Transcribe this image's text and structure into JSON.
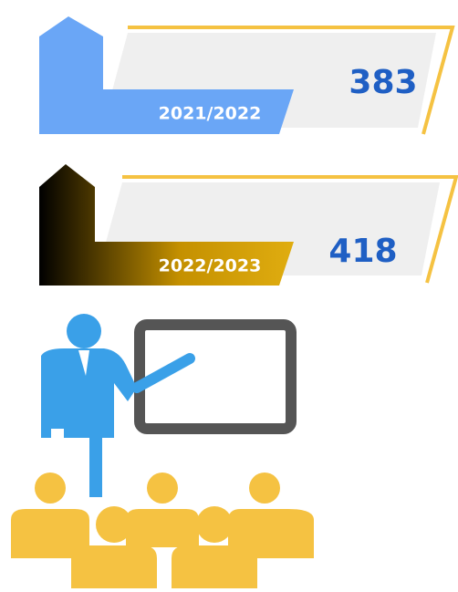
{
  "cards": [
    {
      "period": "2021/2022",
      "value": "383"
    },
    {
      "period": "2022/2023",
      "value": "418"
    }
  ]
}
